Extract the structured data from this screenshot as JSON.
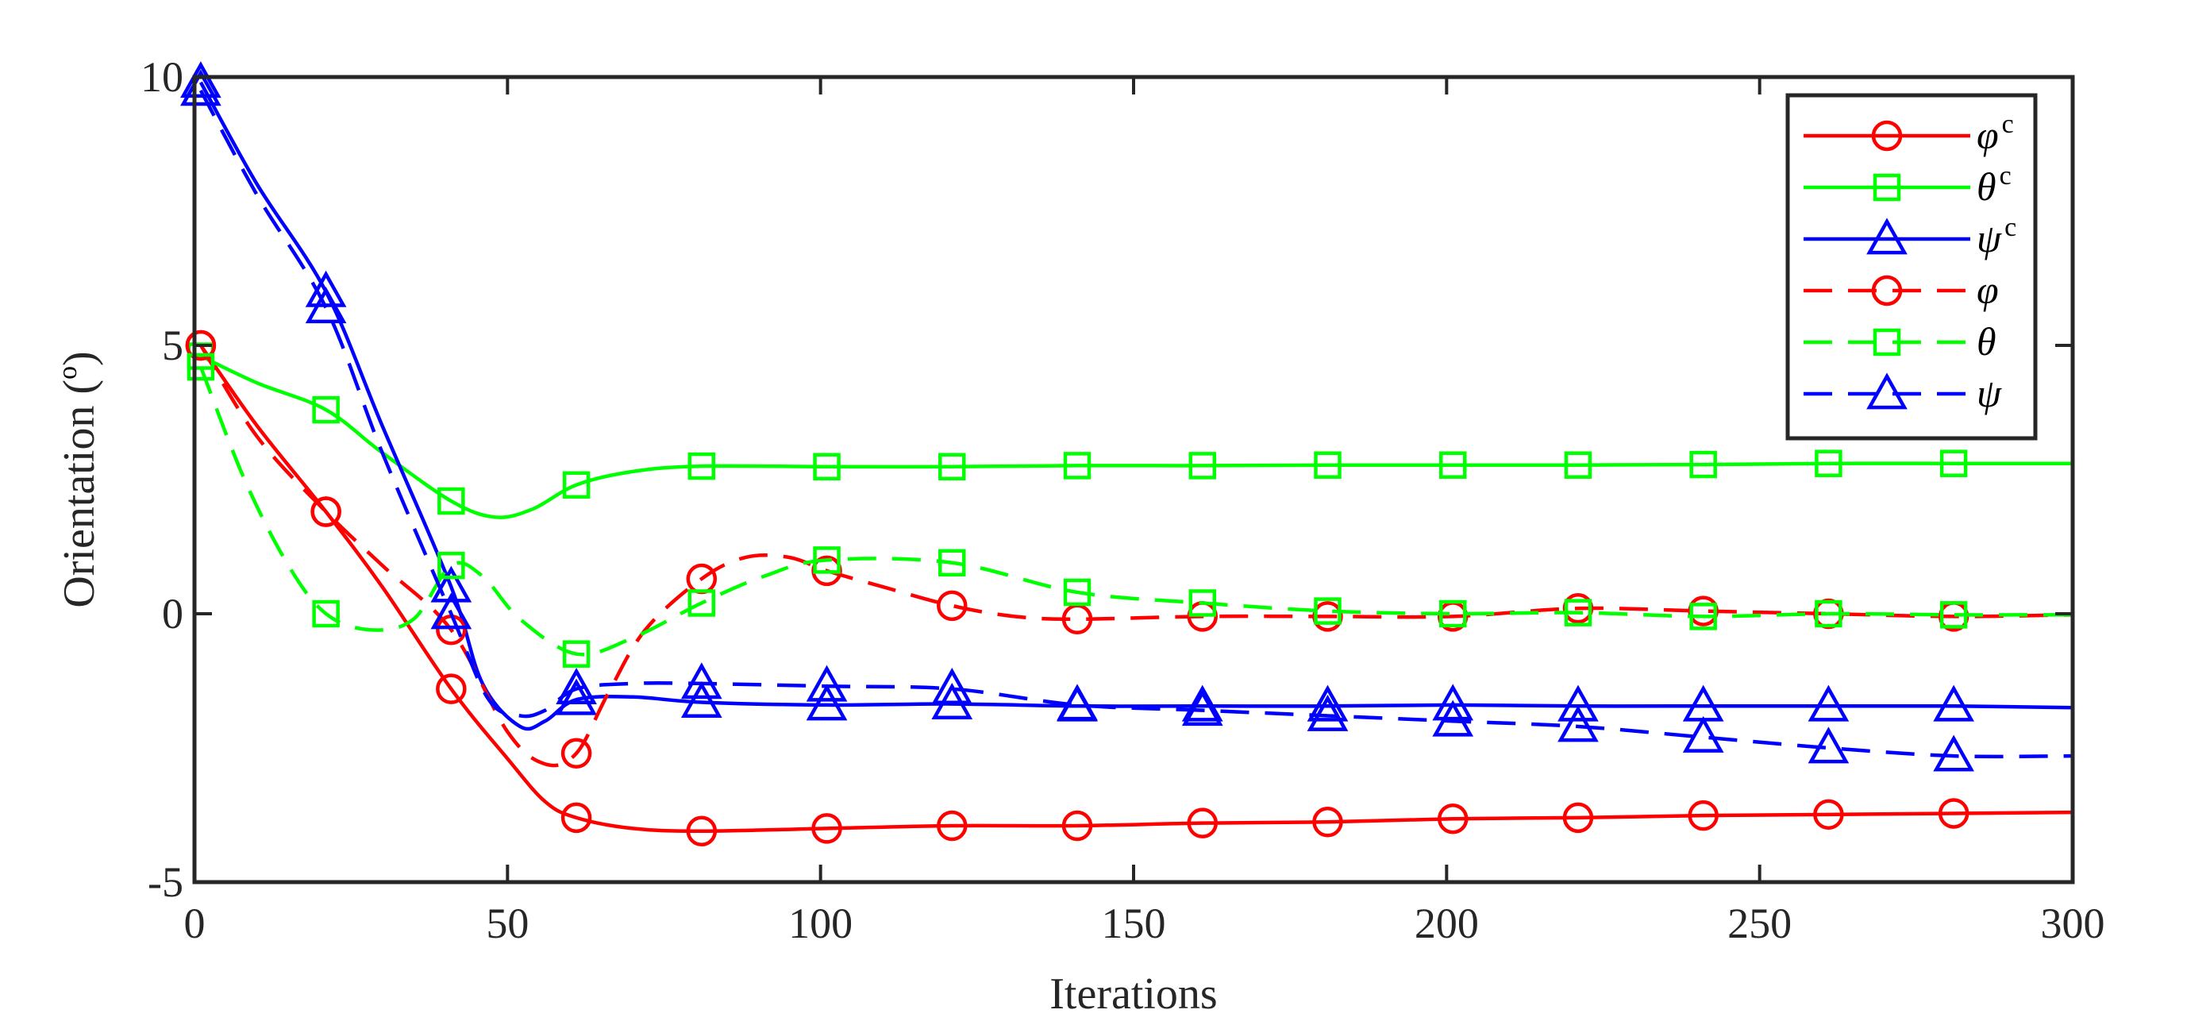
{
  "chart_data": {
    "type": "line",
    "title": "",
    "xlabel": "Iterations",
    "ylabel_main": "Orientation (",
    "ylabel_sup": "o",
    "ylabel_end": ")",
    "xlim": [
      0,
      300
    ],
    "ylim": [
      -5,
      10
    ],
    "xticks": [
      0,
      50,
      100,
      150,
      200,
      250,
      300
    ],
    "yticks": [
      -5,
      0,
      5,
      10
    ],
    "xtick_labels": [
      "0",
      "50",
      "100",
      "150",
      "200",
      "250",
      "300"
    ],
    "ytick_labels": [
      "-5",
      "0",
      "5",
      "10"
    ],
    "grid": false,
    "legend_position": "top-right",
    "colors": {
      "red": "#ff0000",
      "green": "#00ff00",
      "blue": "#0000ff",
      "axis": "#262626"
    },
    "series": [
      {
        "name": "φ",
        "sup": "c",
        "color": "#ff0000",
        "dash": "solid",
        "marker": "circle",
        "x": [
          1,
          10,
          21,
          30,
          41,
          50,
          56,
          61,
          70,
          81,
          101,
          121,
          141,
          161,
          181,
          201,
          221,
          241,
          261,
          281,
          300
        ],
        "y": [
          5.0,
          3.5,
          1.9,
          0.5,
          -1.4,
          -2.7,
          -3.5,
          -3.8,
          -4.0,
          -4.05,
          -4.0,
          -3.95,
          -3.95,
          -3.9,
          -3.88,
          -3.82,
          -3.8,
          -3.76,
          -3.74,
          -3.72,
          -3.7
        ]
      },
      {
        "name": "θ",
        "sup": "c",
        "color": "#00ff00",
        "dash": "solid",
        "marker": "square",
        "x": [
          1,
          10,
          21,
          30,
          41,
          48,
          54,
          61,
          70,
          81,
          101,
          121,
          141,
          161,
          181,
          201,
          221,
          241,
          261,
          281,
          300
        ],
        "y": [
          4.8,
          4.3,
          3.8,
          3.0,
          2.1,
          1.8,
          1.95,
          2.4,
          2.65,
          2.75,
          2.74,
          2.74,
          2.76,
          2.76,
          2.77,
          2.77,
          2.77,
          2.78,
          2.8,
          2.8,
          2.8
        ]
      },
      {
        "name": "ψ",
        "sup": "c",
        "color": "#0000ff",
        "dash": "solid",
        "marker": "triangle",
        "x": [
          1,
          10,
          21,
          30,
          41,
          46,
          52,
          56,
          61,
          70,
          81,
          101,
          121,
          141,
          161,
          181,
          201,
          221,
          241,
          261,
          281,
          300
        ],
        "y": [
          9.9,
          8.0,
          6.0,
          3.5,
          0.5,
          -1.3,
          -2.1,
          -2.0,
          -1.6,
          -1.55,
          -1.65,
          -1.7,
          -1.68,
          -1.72,
          -1.72,
          -1.72,
          -1.7,
          -1.72,
          -1.72,
          -1.72,
          -1.72,
          -1.75
        ]
      },
      {
        "name": "φ",
        "sup": "",
        "color": "#ff0000",
        "dash": "dashed",
        "marker": "circle",
        "x": [
          1,
          10,
          21,
          30,
          41,
          50,
          56,
          61,
          66,
          72,
          81,
          88,
          95,
          101,
          110,
          121,
          131,
          141,
          161,
          181,
          201,
          221,
          241,
          261,
          281,
          300
        ],
        "y": [
          5.0,
          3.3,
          1.9,
          0.9,
          -0.3,
          -2.2,
          -2.8,
          -2.6,
          -1.5,
          -0.3,
          0.65,
          1.05,
          1.05,
          0.8,
          0.5,
          0.15,
          -0.05,
          -0.1,
          -0.05,
          -0.05,
          -0.05,
          0.1,
          0.05,
          0.0,
          -0.05,
          -0.02
        ]
      },
      {
        "name": "θ",
        "sup": "",
        "color": "#00ff00",
        "dash": "dashed",
        "marker": "square",
        "x": [
          1,
          8,
          15,
          21,
          28,
          35,
          41,
          46,
          52,
          61,
          70,
          81,
          91,
          101,
          121,
          141,
          161,
          181,
          201,
          221,
          241,
          261,
          281,
          300
        ],
        "y": [
          4.6,
          2.5,
          0.9,
          0.0,
          -0.3,
          -0.1,
          0.9,
          0.7,
          -0.1,
          -0.75,
          -0.45,
          0.2,
          0.7,
          1.0,
          0.95,
          0.4,
          0.2,
          0.05,
          0.0,
          0.02,
          -0.05,
          0.0,
          -0.02,
          -0.02
        ]
      },
      {
        "name": "ψ",
        "sup": "",
        "color": "#0000ff",
        "dash": "dashed",
        "marker": "triangle",
        "x": [
          1,
          10,
          21,
          30,
          41,
          47,
          52,
          56,
          61,
          70,
          81,
          101,
          121,
          141,
          161,
          181,
          201,
          221,
          241,
          261,
          281,
          300
        ],
        "y": [
          9.75,
          7.8,
          5.7,
          3.0,
          0.0,
          -1.6,
          -1.9,
          -1.8,
          -1.4,
          -1.3,
          -1.3,
          -1.35,
          -1.4,
          -1.7,
          -1.8,
          -1.9,
          -2.0,
          -2.1,
          -2.3,
          -2.5,
          -2.65,
          -2.65
        ]
      }
    ]
  }
}
